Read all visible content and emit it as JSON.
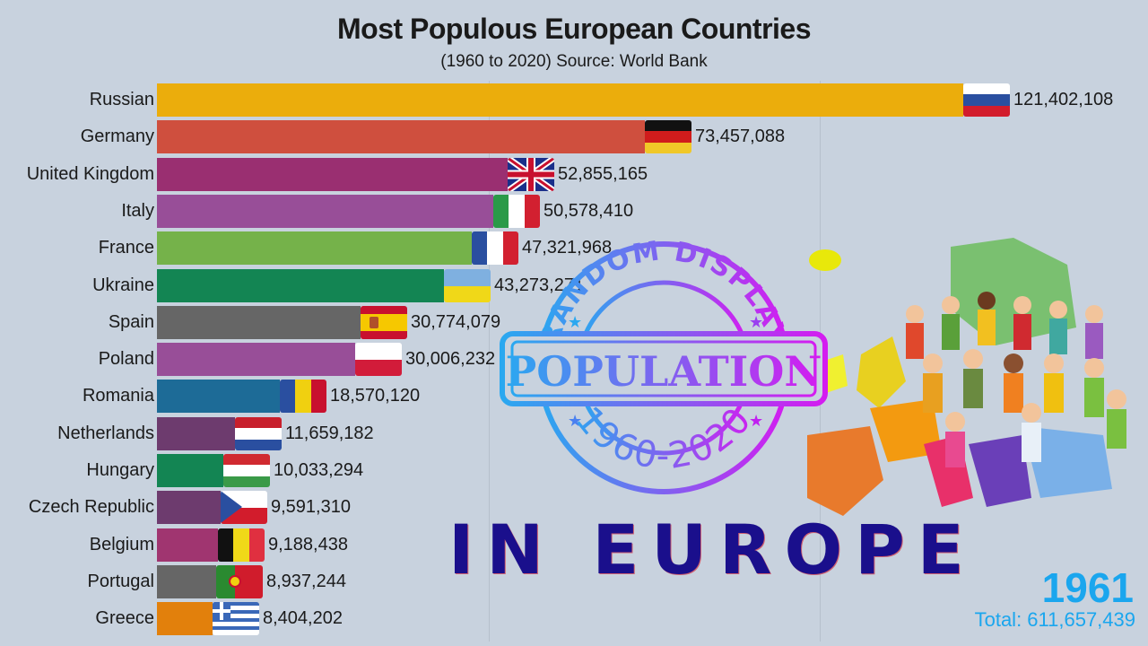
{
  "chart_data": {
    "type": "bar",
    "orientation": "horizontal",
    "title": "Most Populous European Countries",
    "subtitle": "(1960 to 2020) Source: World Bank",
    "xlabel": "",
    "ylabel": "",
    "year": "1961",
    "total_label": "Total: 611,657,439",
    "categories": [
      "Russian",
      "Germany",
      "United Kingdom",
      "Italy",
      "France",
      "Ukraine",
      "Spain",
      "Poland",
      "Romania",
      "Netherlands",
      "Hungary",
      "Czech Republic",
      "Belgium",
      "Portugal",
      "Greece"
    ],
    "values": [
      121402108,
      73457088,
      52855165,
      50578410,
      47321968,
      43273271,
      30774079,
      30006232,
      18570120,
      11659182,
      10033294,
      9591310,
      9188438,
      8937244,
      8404202
    ],
    "value_labels": [
      "121,402,108",
      "73,457,088",
      "52,855,165",
      "50,578,410",
      "47,321,968",
      "43,273,271",
      "30,774,079",
      "30,006,232",
      "18,570,120",
      "11,659,182",
      "10,033,294",
      "9,591,310",
      "9,188,438",
      "8,937,244",
      "8,404,202"
    ],
    "colors": [
      "#ebad0c",
      "#cf4f3e",
      "#9a2f71",
      "#984e98",
      "#75b24a",
      "#138553",
      "#666666",
      "#984e98",
      "#1d6b97",
      "#6d3b6e",
      "#138553",
      "#6d3b6e",
      "#a03570",
      "#666666",
      "#e2800c"
    ],
    "grid": true,
    "legend": "none"
  },
  "overlay": {
    "stamp_top": "RANDOM DISPLAY",
    "stamp_center": "POPULATION",
    "stamp_bottom": "1960-2020",
    "headline": "IN EUROPE"
  },
  "flags": [
    "russia",
    "germany",
    "uk",
    "italy",
    "france",
    "ukraine",
    "spain",
    "poland",
    "romania",
    "netherlands",
    "hungary",
    "czech",
    "belgium",
    "portugal",
    "greece"
  ]
}
